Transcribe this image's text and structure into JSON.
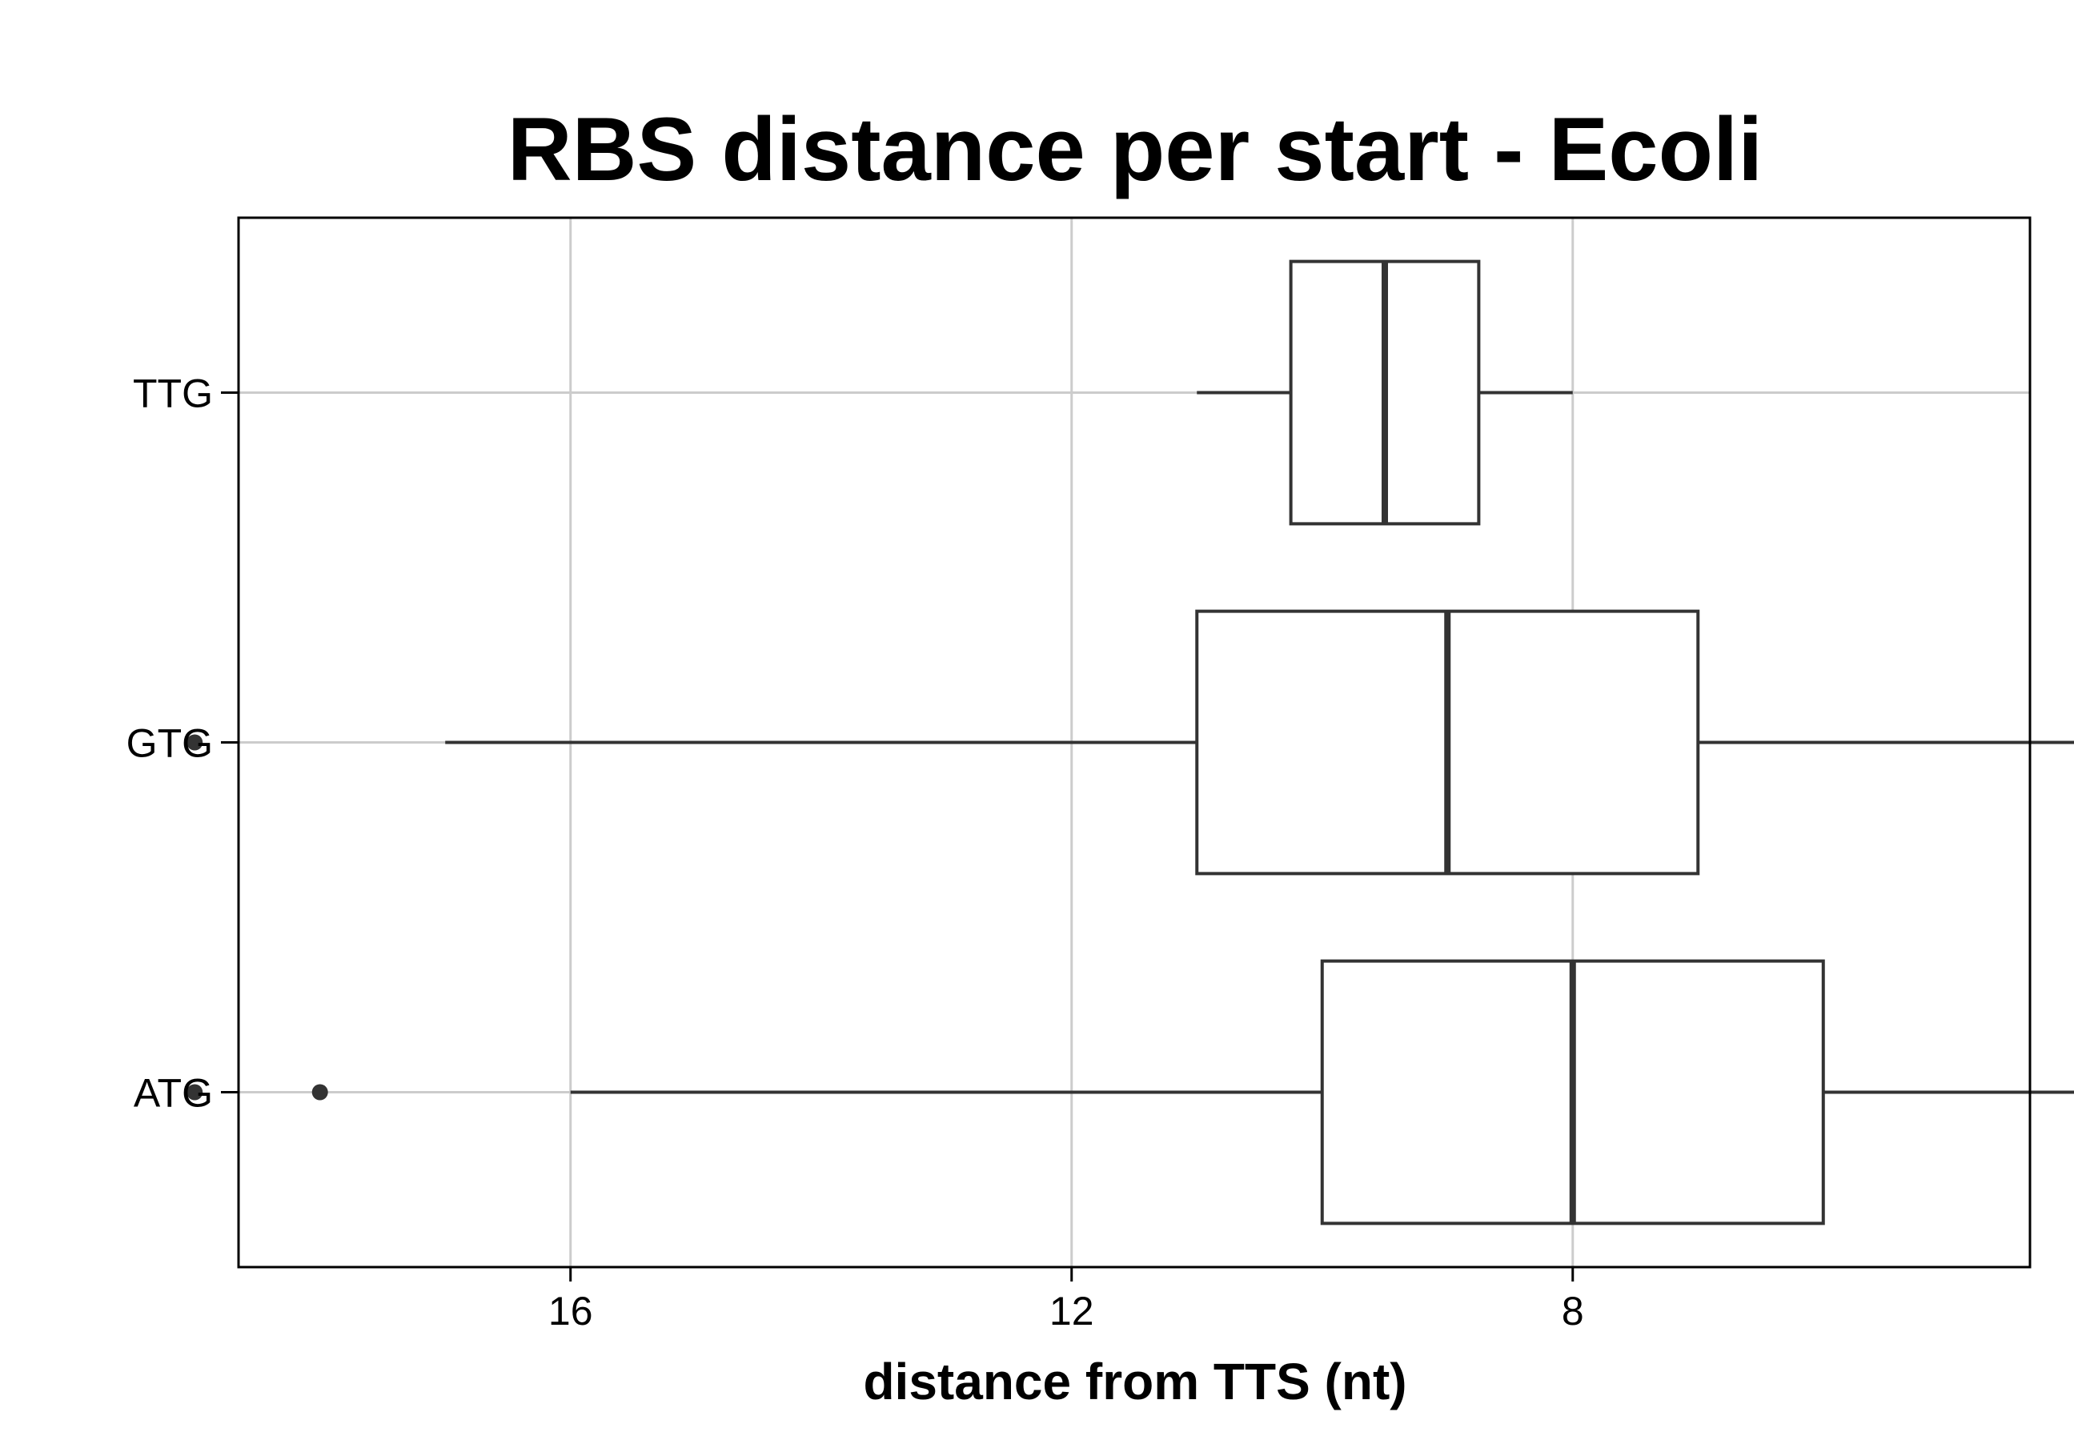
{
  "chart_data": {
    "type": "boxplot",
    "title": "RBS distance per start - Ecoli",
    "xlabel": "distance from TTS (nt)",
    "ylabel": "",
    "x_axis_reversed": true,
    "xlim": [
      18.65,
      4.35
    ],
    "x_ticks": [
      16,
      12,
      8
    ],
    "x_tick_labels": [
      "16",
      "12",
      "8"
    ],
    "grid": true,
    "categories": [
      "TTG",
      "GTG",
      "ATG"
    ],
    "boxes": [
      {
        "category": "TTG",
        "whisker_low": 8,
        "q1": 8.75,
        "median": 9.5,
        "q3": 10.25,
        "whisker_high": 11,
        "outliers": []
      },
      {
        "category": "GTG",
        "whisker_low": 3,
        "q1": 7,
        "median": 9,
        "q3": 11,
        "whisker_high": 17,
        "outliers": [
          19
        ]
      },
      {
        "category": "ATG",
        "whisker_low": 3,
        "q1": 6,
        "median": 8,
        "q3": 10,
        "whisker_high": 16,
        "outliers": [
          19,
          18
        ]
      }
    ],
    "colors": {
      "box": "#333333",
      "grid": "#cccccc",
      "frame": "#000000"
    }
  }
}
